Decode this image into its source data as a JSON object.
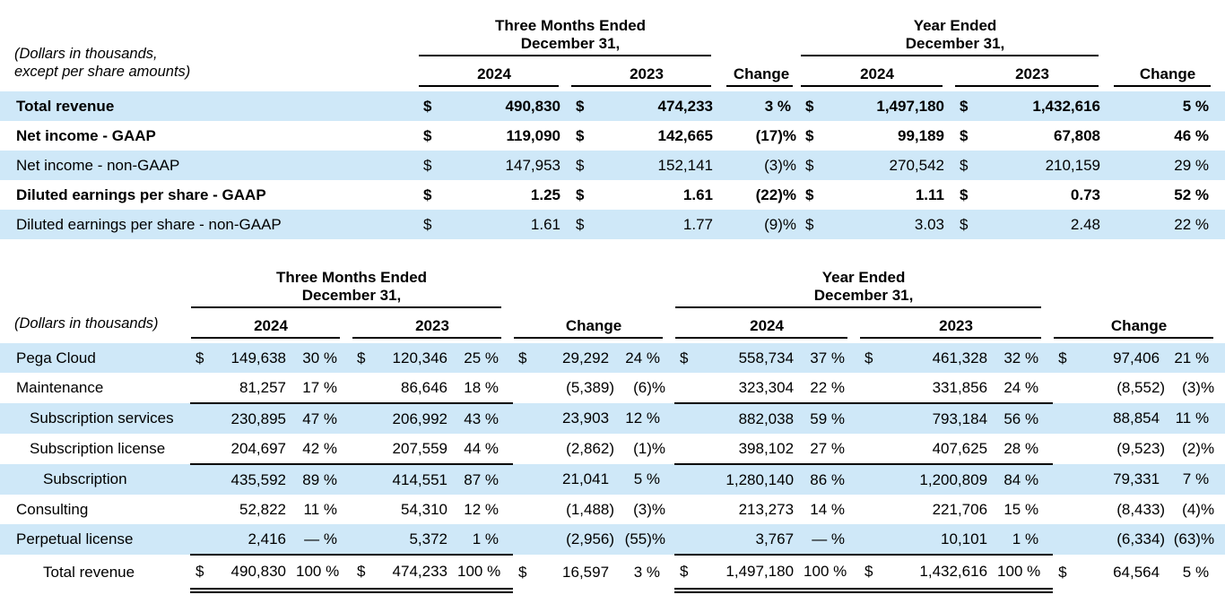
{
  "colors": {
    "stripe": "#cfe8f8",
    "text": "#000000",
    "rule": "#000000",
    "background": "#ffffff"
  },
  "labels": {
    "year_2024": "2024",
    "year_2023": "2023",
    "change": "Change"
  },
  "periods": {
    "three_months_line1": "Three Months Ended",
    "three_months_line2": "December 31,",
    "year_line1": "Year Ended",
    "year_line2": "December 31,"
  },
  "table1": {
    "caption_line1": "(Dollars in thousands,",
    "caption_line2": "except per share amounts)",
    "rows": [
      {
        "label": "Total revenue",
        "bold": true,
        "d1": "$",
        "v1": "490,830",
        "d2": "$",
        "v2": "474,233",
        "c1": "3 %",
        "d3": "$",
        "v3": "1,497,180",
        "d4": "$",
        "v4": "1,432,616",
        "c2": "5 %"
      },
      {
        "label": "Net income - GAAP",
        "bold": true,
        "d1": "$",
        "v1": "119,090",
        "d2": "$",
        "v2": "142,665",
        "c1": "(17)%",
        "d3": "$",
        "v3": "99,189",
        "d4": "$",
        "v4": "67,808",
        "c2": "46 %"
      },
      {
        "label": "Net income - non-GAAP",
        "bold": false,
        "d1": "$",
        "v1": "147,953",
        "d2": "$",
        "v2": "152,141",
        "c1": "(3)%",
        "d3": "$",
        "v3": "270,542",
        "d4": "$",
        "v4": "210,159",
        "c2": "29 %"
      },
      {
        "label": "Diluted earnings per share - GAAP",
        "bold": true,
        "d1": "$",
        "v1": "1.25",
        "d2": "$",
        "v2": "1.61",
        "c1": "(22)%",
        "d3": "$",
        "v3": "1.11",
        "d4": "$",
        "v4": "0.73",
        "c2": "52 %"
      },
      {
        "label": "Diluted earnings per share - non-GAAP",
        "bold": false,
        "d1": "$",
        "v1": "1.61",
        "d2": "$",
        "v2": "1.77",
        "c1": "(9)%",
        "d3": "$",
        "v3": "3.03",
        "d4": "$",
        "v4": "2.48",
        "c2": "22 %"
      }
    ]
  },
  "table2": {
    "caption": "(Dollars in thousands)",
    "rows": [
      {
        "label": "Pega Cloud",
        "indent": 0,
        "d1": "$",
        "v1": "149,638",
        "p1": "30 %",
        "d2": "$",
        "v2": "120,346",
        "p2": "25 %",
        "d3": "$",
        "v3": "29,292",
        "p3": "24 %",
        "d4": "$",
        "v4": "558,734",
        "p4": "37 %",
        "d5": "$",
        "v5": "461,328",
        "p5": "32 %",
        "d6": "$",
        "v6": "97,406",
        "p6": "21 %"
      },
      {
        "label": "Maintenance",
        "indent": 0,
        "rule": "single",
        "v1": "81,257",
        "p1": "17 %",
        "v2": "86,646",
        "p2": "18 %",
        "v3": "(5,389)",
        "p3": "(6)%",
        "v4": "323,304",
        "p4": "22 %",
        "v5": "331,856",
        "p5": "24 %",
        "v6": "(8,552)",
        "p6": "(3)%"
      },
      {
        "label": "Subscription services",
        "indent": 1,
        "v1": "230,895",
        "p1": "47 %",
        "v2": "206,992",
        "p2": "43 %",
        "v3": "23,903",
        "p3": "12 %",
        "v4": "882,038",
        "p4": "59 %",
        "v5": "793,184",
        "p5": "56 %",
        "v6": "88,854",
        "p6": "11 %"
      },
      {
        "label": "Subscription license",
        "indent": 1,
        "rule": "single",
        "v1": "204,697",
        "p1": "42 %",
        "v2": "207,559",
        "p2": "44 %",
        "v3": "(2,862)",
        "p3": "(1)%",
        "v4": "398,102",
        "p4": "27 %",
        "v5": "407,625",
        "p5": "28 %",
        "v6": "(9,523)",
        "p6": "(2)%"
      },
      {
        "label": "Subscription",
        "indent": 2,
        "v1": "435,592",
        "p1": "89 %",
        "v2": "414,551",
        "p2": "87 %",
        "v3": "21,041",
        "p3": "5 %",
        "v4": "1,280,140",
        "p4": "86 %",
        "v5": "1,200,809",
        "p5": "84 %",
        "v6": "79,331",
        "p6": "7 %"
      },
      {
        "label": "Consulting",
        "indent": 0,
        "v1": "52,822",
        "p1": "11 %",
        "v2": "54,310",
        "p2": "12 %",
        "v3": "(1,488)",
        "p3": "(3)%",
        "v4": "213,273",
        "p4": "14 %",
        "v5": "221,706",
        "p5": "15 %",
        "v6": "(8,433)",
        "p6": "(4)%"
      },
      {
        "label": "Perpetual license",
        "indent": 0,
        "rule": "single",
        "v1": "2,416",
        "p1": "— %",
        "v2": "5,372",
        "p2": "1 %",
        "v3": "(2,956)",
        "p3": "(55)%",
        "v4": "3,767",
        "p4": "— %",
        "v5": "10,101",
        "p5": "1 %",
        "v6": "(6,334)",
        "p6": "(63)%"
      },
      {
        "label": "Total revenue",
        "indent": 2,
        "rule": "double",
        "total": true,
        "d1": "$",
        "v1": "490,830",
        "p1": "100 %",
        "d2": "$",
        "v2": "474,233",
        "p2": "100 %",
        "d3": "$",
        "v3": "16,597",
        "p3": "3 %",
        "d4": "$",
        "v4": "1,497,180",
        "p4": "100 %",
        "d5": "$",
        "v5": "1,432,616",
        "p5": "100 %",
        "d6": "$",
        "v6": "64,564",
        "p6": "5 %"
      }
    ]
  }
}
